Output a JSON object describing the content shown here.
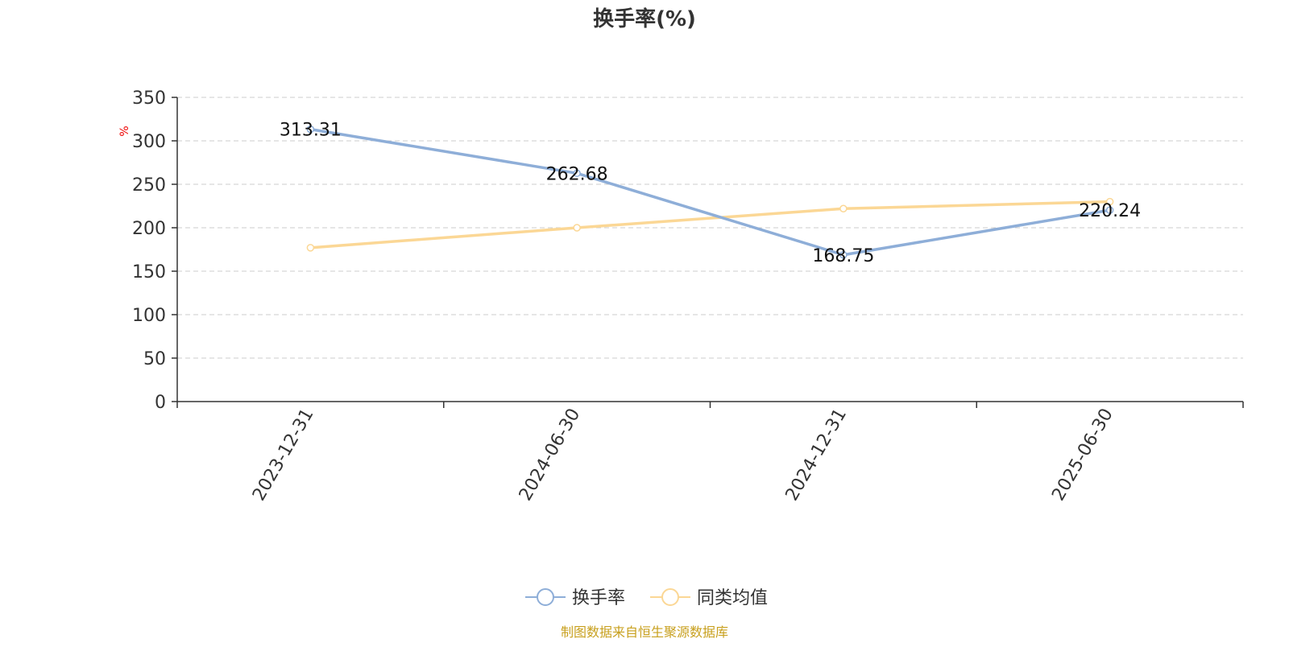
{
  "chart_data": {
    "type": "line",
    "title": "换手率(%)",
    "ylabel": "%",
    "xlabel": "",
    "categories": [
      "2023-12-31",
      "2024-06-30",
      "2024-12-31",
      "2025-06-30"
    ],
    "ylim": [
      0,
      350
    ],
    "yticks": [
      0,
      50,
      100,
      150,
      200,
      250,
      300,
      350
    ],
    "grid": true,
    "legend_position": "bottom",
    "series": [
      {
        "name": "换手率",
        "values": [
          313.31,
          262.68,
          168.75,
          220.24
        ],
        "data_labels": [
          "313.31",
          "262.68",
          "168.75",
          "220.24"
        ],
        "color": "#8eaed8"
      },
      {
        "name": "同类均值",
        "values": [
          177,
          200,
          222,
          230
        ],
        "color": "#fbd795"
      }
    ],
    "source": "制图数据来自恒生聚源数据库"
  },
  "colors": {
    "title": "#333333",
    "axis": "#333333",
    "grid": "#cccccc",
    "ylabel": "#ee0000",
    "source": "#c8a01e"
  }
}
